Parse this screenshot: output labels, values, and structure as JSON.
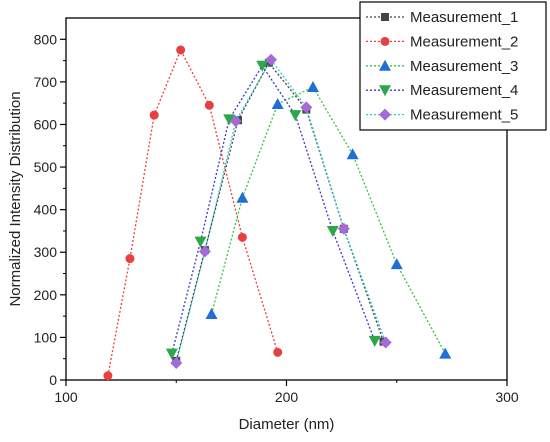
{
  "chart_data": {
    "type": "line",
    "title": "",
    "xlabel": "Diameter (nm)",
    "ylabel": "Normalized Intensity Distribution",
    "xlim": [
      100,
      300
    ],
    "ylim": [
      0,
      850
    ],
    "x_ticks": [
      100,
      200,
      300
    ],
    "y_ticks": [
      0,
      100,
      200,
      300,
      400,
      500,
      600,
      700,
      800
    ],
    "grid": false,
    "legend_position": "top-right",
    "line_style": "dotted",
    "series": [
      {
        "name": "Measurement_1",
        "color": "#444444",
        "marker": "square",
        "x": [
          150,
          163,
          178,
          192,
          209,
          226,
          244
        ],
        "y": [
          45,
          305,
          610,
          745,
          635,
          355,
          90
        ]
      },
      {
        "name": "Measurement_2",
        "color": "#e84040",
        "marker": "circle",
        "x": [
          119,
          129,
          140,
          152,
          165,
          180,
          196
        ],
        "y": [
          10,
          285,
          622,
          775,
          645,
          335,
          65
        ]
      },
      {
        "name": "Measurement_3",
        "color": "#1f6fd6",
        "marker": "triangle-up",
        "x": [
          166,
          180,
          196,
          212,
          230,
          250,
          272
        ],
        "y": [
          155,
          428,
          648,
          688,
          530,
          272,
          62
        ]
      },
      {
        "name": "Measurement_4",
        "color": "#2ca84a",
        "marker": "triangle-down",
        "x": [
          148,
          161,
          174,
          189,
          204,
          221,
          240
        ],
        "y": [
          62,
          325,
          612,
          738,
          622,
          350,
          92
        ]
      },
      {
        "name": "Measurement_5",
        "color": "#a46ad8",
        "marker": "diamond",
        "x": [
          150,
          163,
          177,
          193,
          209,
          226,
          245
        ],
        "y": [
          40,
          302,
          608,
          752,
          640,
          355,
          88
        ]
      }
    ],
    "legend_line_colors": [
      "#444444",
      "#e84040",
      "#39c23b",
      "#3838c8",
      "#30c9d6"
    ]
  }
}
